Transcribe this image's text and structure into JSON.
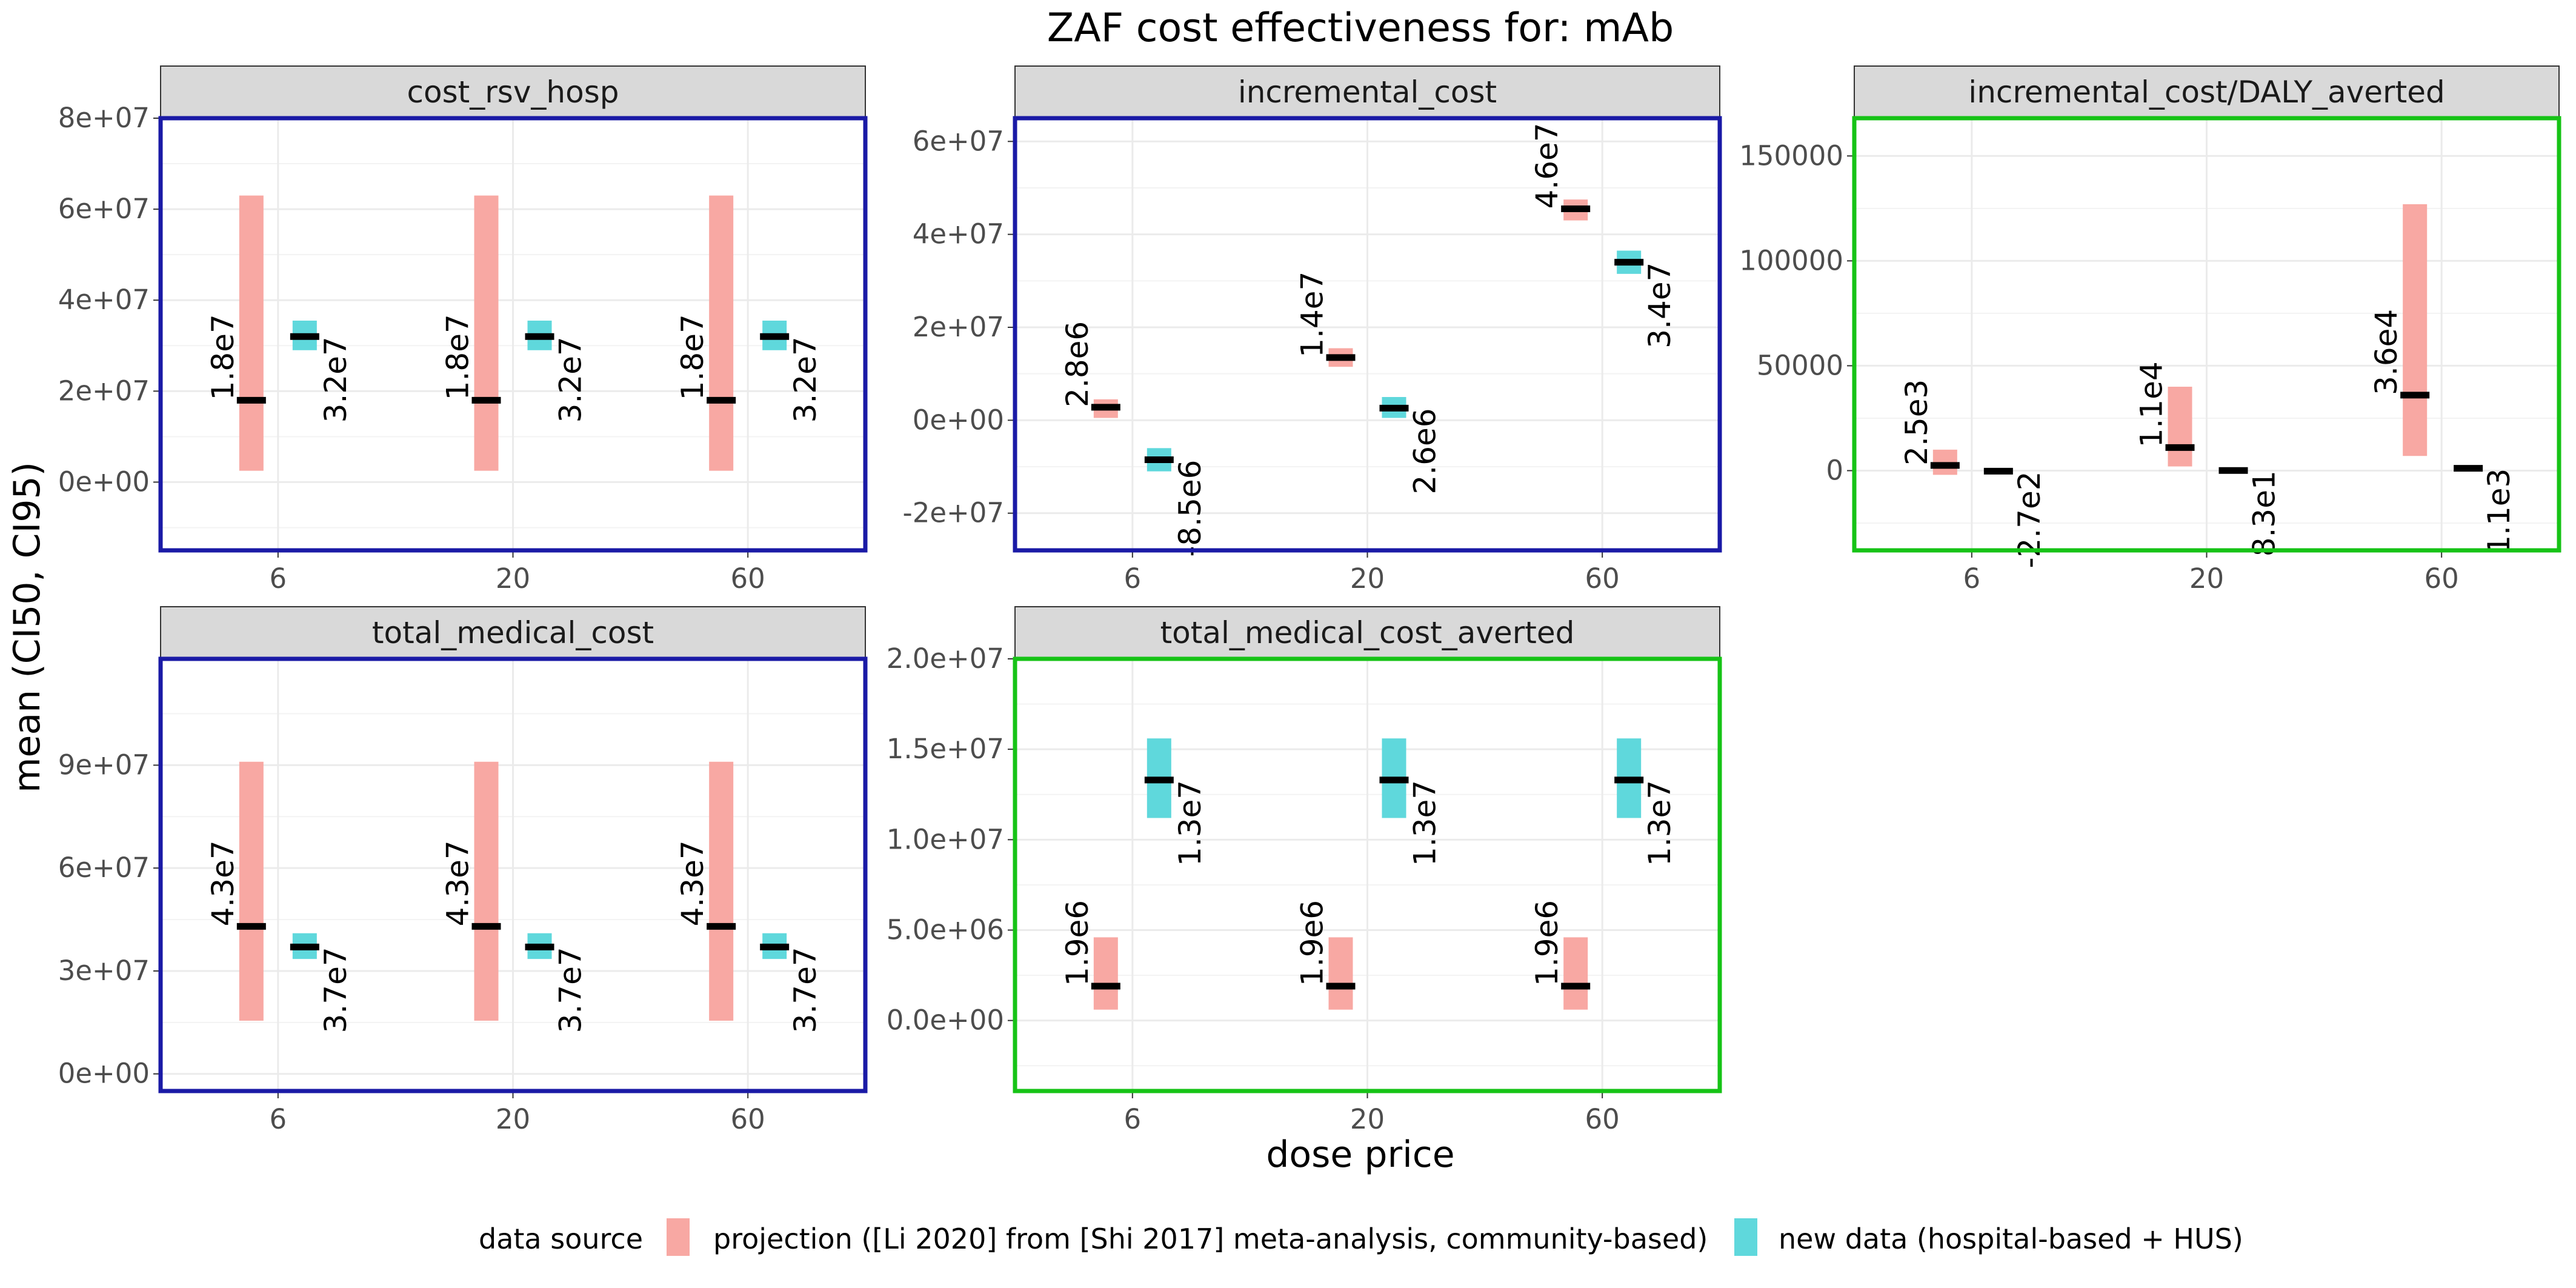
{
  "title": "ZAF cost effectiveness for: mAb",
  "xlabel": "dose price",
  "ylabel": "mean (CI50, CI95)",
  "legend": {
    "title": "data source",
    "placement": "bottom",
    "items": [
      {
        "label": "projection ([Li 2020] from [Shi 2017] meta-analysis, community-based)",
        "color": "#F8A8A3"
      },
      {
        "label": "new data (hospital-based + HUS)",
        "color": "#5FD8DC"
      }
    ]
  },
  "colors": {
    "blue_border": "#1a1aa6",
    "green_border": "#16c316",
    "strip_bg": "#d9d9d9",
    "grid": "#ebebeb"
  },
  "chart_data": [
    {
      "type": "bar",
      "panel": "cost_rsv_hosp",
      "border": "blue",
      "categories": [
        "6",
        "20",
        "60"
      ],
      "ylim": [
        -15000000,
        80000000
      ],
      "yticks": [
        0,
        20000000,
        40000000,
        60000000,
        80000000
      ],
      "ytick_labels": [
        "0e+00",
        "2e+07",
        "4e+07",
        "6e+07",
        "8e+07"
      ],
      "series": [
        {
          "name": "projection ([Li 2020] from [Shi 2017] meta-analysis, community-based)",
          "mean": [
            18000000,
            18000000,
            18000000
          ],
          "low": [
            2500000,
            2500000,
            2500000
          ],
          "high": [
            63000000,
            63000000,
            63000000
          ],
          "labels": [
            "1.8e7",
            "1.8e7",
            "1.8e7"
          ]
        },
        {
          "name": "new data (hospital-based + HUS)",
          "mean": [
            32000000,
            32000000,
            32000000
          ],
          "low": [
            29000000,
            29000000,
            29000000
          ],
          "high": [
            35500000,
            35500000,
            35500000
          ],
          "labels": [
            "3.2e7",
            "3.2e7",
            "3.2e7"
          ]
        }
      ]
    },
    {
      "type": "bar",
      "panel": "incremental_cost",
      "border": "blue",
      "categories": [
        "6",
        "20",
        "60"
      ],
      "ylim": [
        -28000000,
        65000000
      ],
      "yticks": [
        -20000000,
        0,
        20000000,
        40000000,
        60000000
      ],
      "ytick_labels": [
        "-2e+07",
        "0e+00",
        "2e+07",
        "4e+07",
        "6e+07"
      ],
      "series": [
        {
          "name": "projection ([Li 2020] from [Shi 2017] meta-analysis, community-based)",
          "mean": [
            2800000,
            13500000,
            45500000
          ],
          "low": [
            500000,
            11500000,
            43000000
          ],
          "high": [
            4500000,
            15500000,
            47500000
          ],
          "labels": [
            "2.8e6",
            "1.4e7",
            "4.6e7"
          ]
        },
        {
          "name": "new data (hospital-based + HUS)",
          "mean": [
            -8500000,
            2600000,
            34000000
          ],
          "low": [
            -11000000,
            500000,
            31500000
          ],
          "high": [
            -6000000,
            5000000,
            36500000
          ],
          "labels": [
            "-8.5e6",
            "2.6e6",
            "3.4e7"
          ]
        }
      ]
    },
    {
      "type": "bar",
      "panel": "incremental_cost/DALY_averted",
      "border": "green",
      "categories": [
        "6",
        "20",
        "60"
      ],
      "ylim": [
        -38000,
        168000
      ],
      "yticks": [
        0,
        50000,
        100000,
        150000
      ],
      "ytick_labels": [
        "0",
        "50000",
        "100000",
        "150000"
      ],
      "series": [
        {
          "name": "projection ([Li 2020] from [Shi 2017] meta-analysis, community-based)",
          "mean": [
            2500,
            11000,
            36000
          ],
          "low": [
            -2000,
            2000,
            7000
          ],
          "high": [
            10000,
            40000,
            127000
          ],
          "labels": [
            "2.5e3",
            "1.1e4",
            "3.6e4"
          ]
        },
        {
          "name": "new data (hospital-based + HUS)",
          "mean": [
            -270,
            83,
            1100
          ],
          "low": [
            -800,
            -300,
            500
          ],
          "high": [
            300,
            500,
            1800
          ],
          "labels": [
            "-2.7e2",
            "8.3e1",
            "1.1e3"
          ]
        }
      ]
    },
    {
      "type": "bar",
      "panel": "total_medical_cost",
      "border": "blue",
      "categories": [
        "6",
        "20",
        "60"
      ],
      "ylim": [
        -5000000,
        121000000
      ],
      "yticks": [
        0,
        30000000,
        60000000,
        90000000
      ],
      "ytick_labels": [
        "0e+00",
        "3e+07",
        "6e+07",
        "9e+07"
      ],
      "series": [
        {
          "name": "projection ([Li 2020] from [Shi 2017] meta-analysis, community-based)",
          "mean": [
            43000000,
            43000000,
            43000000
          ],
          "low": [
            15500000,
            15500000,
            15500000
          ],
          "high": [
            91000000,
            91000000,
            91000000
          ],
          "labels": [
            "4.3e7",
            "4.3e7",
            "4.3e7"
          ]
        },
        {
          "name": "new data (hospital-based + HUS)",
          "mean": [
            37000000,
            37000000,
            37000000
          ],
          "low": [
            33500000,
            33500000,
            33500000
          ],
          "high": [
            41000000,
            41000000,
            41000000
          ],
          "labels": [
            "3.7e7",
            "3.7e7",
            "3.7e7"
          ]
        }
      ]
    },
    {
      "type": "bar",
      "panel": "total_medical_cost_averted",
      "border": "green",
      "categories": [
        "6",
        "20",
        "60"
      ],
      "ylim": [
        -3900000,
        20000000
      ],
      "yticks": [
        0,
        5000000,
        10000000,
        15000000,
        20000000
      ],
      "ytick_labels": [
        "0.0e+00",
        "5.0e+06",
        "1.0e+07",
        "1.5e+07",
        "2.0e+07"
      ],
      "series": [
        {
          "name": "projection ([Li 2020] from [Shi 2017] meta-analysis, community-based)",
          "mean": [
            1900000,
            1900000,
            1900000
          ],
          "low": [
            600000,
            600000,
            600000
          ],
          "high": [
            4600000,
            4600000,
            4600000
          ],
          "labels": [
            "1.9e6",
            "1.9e6",
            "1.9e6"
          ]
        },
        {
          "name": "new data (hospital-based + HUS)",
          "mean": [
            13300000,
            13300000,
            13300000
          ],
          "low": [
            11200000,
            11200000,
            11200000
          ],
          "high": [
            15600000,
            15600000,
            15600000
          ],
          "labels": [
            "1.3e7",
            "1.3e7",
            "1.3e7"
          ]
        }
      ]
    }
  ]
}
